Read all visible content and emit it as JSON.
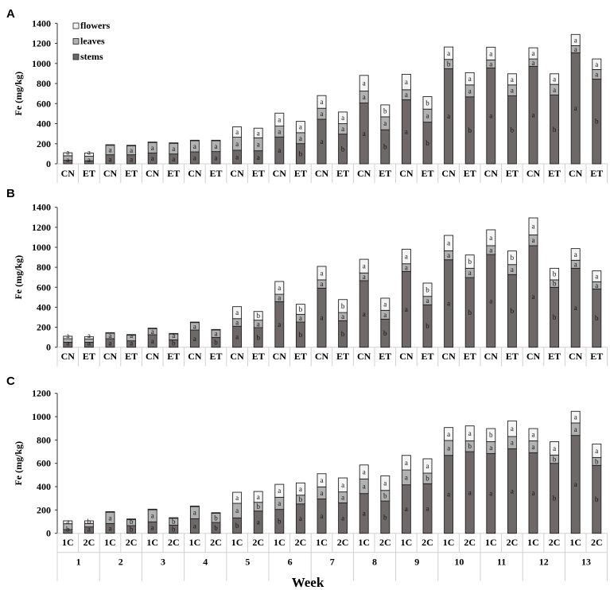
{
  "colors": {
    "stems": "#6e6868",
    "leaves": "#b2b2b2",
    "flowers": "#f4f4f4",
    "border": "#222222",
    "grid": "#d0d0d0"
  },
  "chart_data": [
    {
      "type": "bar",
      "stacked": true,
      "panel_label": "A",
      "ylabel": "Fe (mg/kg)",
      "ylim": [
        0,
        1400
      ],
      "yticks": [
        0,
        200,
        400,
        600,
        800,
        1000,
        1200,
        1400
      ],
      "legend": {
        "placement": "top-left",
        "entries": [
          "flowers",
          "leaves",
          "stems"
        ]
      },
      "categories": [
        "CN",
        "ET",
        "CN",
        "ET",
        "CN",
        "ET",
        "CN",
        "ET",
        "CN",
        "ET",
        "CN",
        "ET",
        "CN",
        "ET",
        "CN",
        "ET",
        "CN",
        "ET",
        "CN",
        "ET",
        "CN",
        "ET",
        "CN",
        "ET",
        "CN",
        "ET"
      ],
      "series": [
        {
          "name": "stems",
          "values": [
            35,
            30,
            90,
            90,
            108,
            98,
            119,
            122,
            135,
            130,
            267,
            201,
            444,
            296,
            606,
            339,
            638,
            415,
            947,
            667,
            955,
            677,
            971,
            685,
            1106,
            844
          ],
          "letters": [
            "a",
            "a",
            "a",
            "a",
            "a",
            "a",
            "a",
            "a",
            "a",
            "a",
            "a",
            "b",
            "a",
            "b",
            "a",
            "b",
            "a",
            "b",
            "a",
            "b",
            "a",
            "b",
            "a",
            "b",
            "a",
            "b"
          ]
        },
        {
          "name": "leaves",
          "values": [
            45,
            45,
            95,
            90,
            104,
            106,
            111,
            108,
            130,
            129,
            109,
            109,
            109,
            104,
            119,
            129,
            100,
            130,
            93,
            119,
            80,
            109,
            74,
            106,
            71,
            95
          ],
          "letters": [
            "a",
            "a",
            "a",
            "a",
            "a",
            "a",
            "a",
            "a",
            "a",
            "a",
            "a",
            "a",
            "a",
            "a",
            "a",
            "a",
            "a",
            "a",
            "b",
            "a",
            "a",
            "a",
            "a",
            "a",
            "a",
            "a"
          ]
        },
        {
          "name": "flowers",
          "values": [
            30,
            33,
            5,
            5,
            5,
            5,
            5,
            5,
            103,
            96,
            129,
            113,
            127,
            116,
            156,
            119,
            154,
            124,
            124,
            122,
            127,
            111,
            111,
            106,
            112,
            106
          ],
          "letters": [
            "",
            "",
            "",
            "",
            "",
            "",
            "",
            "",
            "a",
            "a",
            "a",
            "a",
            "a",
            "a",
            "a",
            "b",
            "a",
            "b",
            "a",
            "a",
            "a",
            "a",
            "a",
            "a",
            "a",
            "a"
          ]
        }
      ]
    },
    {
      "type": "bar",
      "stacked": true,
      "panel_label": "B",
      "ylabel": "Fe (mg/kg)",
      "ylim": [
        0,
        1400
      ],
      "yticks": [
        0,
        200,
        400,
        600,
        800,
        1000,
        1200,
        1400
      ],
      "categories": [
        "CN",
        "ET",
        "CN",
        "ET",
        "CN",
        "ET",
        "CN",
        "ET",
        "CN",
        "ET",
        "CN",
        "ET",
        "CN",
        "ET",
        "CN",
        "ET",
        "CN",
        "ET",
        "CN",
        "ET",
        "CN",
        "ET",
        "CN",
        "ET",
        "CN",
        "ET"
      ],
      "series": [
        {
          "name": "stems",
          "values": [
            50,
            50,
            85,
            64,
            125,
            74,
            172,
            98,
            210,
            196,
            456,
            252,
            591,
            265,
            666,
            281,
            758,
            424,
            875,
            697,
            928,
            727,
            1016,
            599,
            790,
            583
          ],
          "letters": [
            "a",
            "a",
            "a",
            "a",
            "a",
            "b",
            "a",
            "b",
            "a",
            "b",
            "a",
            "b",
            "a",
            "b",
            "a",
            "b",
            "a",
            "b",
            "a",
            "b",
            "a",
            "b",
            "a",
            "b",
            "a",
            "b"
          ]
        },
        {
          "name": "leaves",
          "values": [
            35,
            33,
            56,
            58,
            61,
            59,
            75,
            75,
            76,
            75,
            74,
            77,
            83,
            82,
            77,
            88,
            77,
            85,
            90,
            93,
            88,
            100,
            108,
            75,
            80,
            72
          ],
          "letters": [
            "a",
            "a",
            "a",
            "a",
            "a",
            "a",
            "a",
            "a",
            "a",
            "a",
            "a",
            "a",
            "a",
            "a",
            "a",
            "a",
            "a",
            "a",
            "a",
            "a",
            "a",
            "a",
            "a",
            "b",
            "a",
            "a"
          ]
        },
        {
          "name": "flowers",
          "values": [
            25,
            23,
            5,
            5,
            5,
            5,
            5,
            5,
            120,
            87,
            128,
            101,
            135,
            130,
            137,
            122,
            146,
            133,
            154,
            133,
            159,
            136,
            170,
            116,
            117,
            109
          ],
          "letters": [
            "",
            "",
            "",
            "",
            "",
            "",
            "",
            "",
            "a",
            "b",
            "a",
            "b",
            "a",
            "b",
            "a",
            "a",
            "a",
            "b",
            "a",
            "b",
            "a",
            "b",
            "a",
            "b",
            "a",
            "a"
          ]
        }
      ]
    },
    {
      "type": "bar",
      "stacked": true,
      "panel_label": "C",
      "ylabel": "Fe (mg/kg)",
      "xlabel": "Week",
      "ylim": [
        0,
        1200
      ],
      "yticks": [
        0,
        200,
        400,
        600,
        800,
        1000,
        1200
      ],
      "categories": [
        "1C",
        "2C",
        "1C",
        "2C",
        "1C",
        "2C",
        "1C",
        "2C",
        "1C",
        "2C",
        "1C",
        "2C",
        "1C",
        "2C",
        "1C",
        "2C",
        "1C",
        "2C",
        "1C",
        "2C",
        "1C",
        "2C",
        "1C",
        "2C",
        "1C",
        "2C"
      ],
      "groups": [
        "1",
        "2",
        "3",
        "4",
        "5",
        "6",
        "7",
        "8",
        "9",
        "10",
        "11",
        "12",
        "13"
      ],
      "series": [
        {
          "name": "stems",
          "values": [
            32,
            55,
            84,
            66,
            98,
            70,
            125,
            93,
            132,
            191,
            205,
            252,
            295,
            261,
            341,
            277,
            416,
            425,
            668,
            700,
            684,
            725,
            691,
            600,
            839,
            582
          ],
          "letters": [
            "b",
            "a",
            "a",
            "b",
            "a",
            "b",
            "a",
            "b",
            "b",
            "a",
            "b",
            "a",
            "a",
            "a",
            "a",
            "b",
            "a",
            "a",
            "a",
            "a",
            "a",
            "a",
            "a",
            "b",
            "a",
            "b"
          ]
        },
        {
          "name": "leaves",
          "values": [
            50,
            30,
            97,
            52,
            104,
            59,
            104,
            79,
            125,
            75,
            104,
            75,
            103,
            94,
            125,
            91,
            127,
            91,
            128,
            93,
            102,
            105,
            102,
            71,
            107,
            68
          ],
          "letters": [
            "a",
            "b",
            "a",
            "b",
            "a",
            "b",
            "a",
            "b",
            "a",
            "b",
            "a",
            "b",
            "a",
            "a",
            "a",
            "b",
            "a",
            "b",
            "a",
            "b",
            "a",
            "a",
            "a",
            "b",
            "a",
            "b"
          ]
        },
        {
          "name": "flowers",
          "values": [
            25,
            22,
            5,
            5,
            5,
            5,
            5,
            5,
            95,
            93,
            111,
            105,
            113,
            120,
            120,
            125,
            125,
            123,
            111,
            128,
            112,
            134,
            105,
            115,
            100,
            116
          ],
          "letters": [
            "",
            "",
            "",
            "",
            "",
            "",
            "",
            "",
            "a",
            "a",
            "a",
            "a",
            "a",
            "a",
            "a",
            "a",
            "a",
            "a",
            "a",
            "a",
            "b",
            "a",
            "a",
            "a",
            "a",
            "a"
          ]
        }
      ]
    }
  ]
}
